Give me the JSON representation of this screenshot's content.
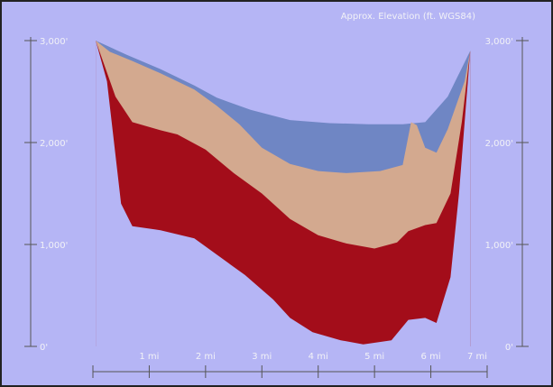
{
  "chart_data": {
    "type": "area",
    "title": "Approx. Elevation (ft. WGS84)",
    "xlabel": "",
    "ylabel": "",
    "x_unit": "mi",
    "y_unit": "ft",
    "xlim": [
      0,
      7
    ],
    "ylim": [
      0,
      3000
    ],
    "y_ticks": [
      0,
      1000,
      2000,
      3000
    ],
    "y_tick_labels": [
      "0'",
      "1,000'",
      "2,000'",
      "3,000'"
    ],
    "x_ticks": [
      1,
      2,
      3,
      4,
      5,
      6,
      7
    ],
    "x_tick_labels": [
      "1 mi",
      "2 mi",
      "3 mi",
      "4 mi",
      "5 mi",
      "6 mi",
      "7 mi"
    ],
    "grid": false,
    "legend": "none",
    "colors": {
      "background": "#b5b5f5",
      "border": "#222222",
      "blue_layer": "#6f86c4",
      "tan_layer": "#d3a98f",
      "red_layer": "#a30d1a",
      "axis": "#555555",
      "tick_text": "#f2f2f7"
    },
    "layers": [
      {
        "id": "blue",
        "points": [
          [
            0.05,
            3000
          ],
          [
            0.6,
            2860
          ],
          [
            1.2,
            2720
          ],
          [
            1.8,
            2560
          ],
          [
            2.2,
            2440
          ],
          [
            2.8,
            2320
          ],
          [
            3.5,
            2220
          ],
          [
            4.2,
            2190
          ],
          [
            4.9,
            2180
          ],
          [
            5.5,
            2180
          ],
          [
            5.9,
            2200
          ],
          [
            6.3,
            2450
          ],
          [
            6.7,
            2900
          ],
          [
            6.7,
            0
          ],
          [
            0.05,
            0
          ]
        ]
      },
      {
        "id": "tan",
        "points": [
          [
            0.05,
            3000
          ],
          [
            0.3,
            2890
          ],
          [
            0.7,
            2800
          ],
          [
            1.2,
            2680
          ],
          [
            1.8,
            2520
          ],
          [
            2.2,
            2360
          ],
          [
            2.6,
            2180
          ],
          [
            3.0,
            1950
          ],
          [
            3.5,
            1790
          ],
          [
            4.0,
            1720
          ],
          [
            4.5,
            1700
          ],
          [
            5.1,
            1720
          ],
          [
            5.5,
            1780
          ],
          [
            5.65,
            2200
          ],
          [
            5.75,
            2170
          ],
          [
            5.9,
            1950
          ],
          [
            6.1,
            1900
          ],
          [
            6.3,
            2130
          ],
          [
            6.6,
            2600
          ],
          [
            6.7,
            2900
          ],
          [
            6.7,
            0
          ],
          [
            0.05,
            0
          ]
        ]
      },
      {
        "id": "red",
        "points": [
          [
            0.05,
            3000
          ],
          [
            0.4,
            2450
          ],
          [
            0.7,
            2200
          ],
          [
            1.2,
            2120
          ],
          [
            1.5,
            2080
          ],
          [
            2.0,
            1930
          ],
          [
            2.5,
            1700
          ],
          [
            3.0,
            1500
          ],
          [
            3.5,
            1250
          ],
          [
            4.0,
            1090
          ],
          [
            4.5,
            1010
          ],
          [
            5.0,
            960
          ],
          [
            5.4,
            1020
          ],
          [
            5.6,
            1130
          ],
          [
            5.9,
            1190
          ],
          [
            6.1,
            1210
          ],
          [
            6.35,
            1500
          ],
          [
            6.55,
            2200
          ],
          [
            6.7,
            2900
          ],
          [
            6.7,
            0
          ],
          [
            0.05,
            0
          ]
        ]
      },
      {
        "id": "bottom",
        "points": [
          [
            0.05,
            3000
          ],
          [
            0.25,
            2600
          ],
          [
            0.5,
            1400
          ],
          [
            0.7,
            1180
          ],
          [
            1.2,
            1140
          ],
          [
            1.8,
            1060
          ],
          [
            2.2,
            900
          ],
          [
            2.7,
            700
          ],
          [
            3.2,
            460
          ],
          [
            3.5,
            280
          ],
          [
            3.9,
            140
          ],
          [
            4.4,
            60
          ],
          [
            4.8,
            20
          ],
          [
            5.3,
            60
          ],
          [
            5.6,
            260
          ],
          [
            5.9,
            280
          ],
          [
            6.1,
            230
          ],
          [
            6.35,
            680
          ],
          [
            6.5,
            1500
          ],
          [
            6.7,
            2900
          ],
          [
            6.7,
            0
          ],
          [
            0.05,
            0
          ]
        ]
      }
    ]
  }
}
